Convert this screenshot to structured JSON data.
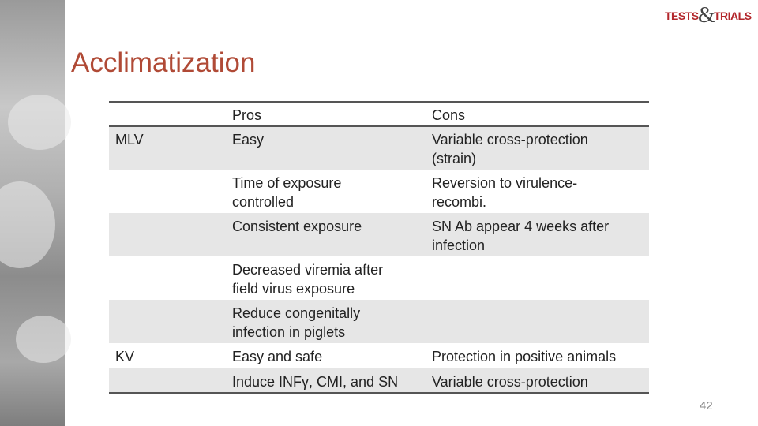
{
  "logo": {
    "left": "TESTS",
    "amp": "&",
    "right": "TRIALS"
  },
  "title": "Acclimatization",
  "table": {
    "header": [
      null,
      "Pros",
      "Cons"
    ],
    "rows": [
      [
        "MLV",
        "Easy",
        "Variable cross-protection\n(strain)"
      ],
      [
        null,
        "Time of exposure\ncontrolled",
        "Reversion to virulence-\nrecombi."
      ],
      [
        null,
        "Consistent exposure",
        "SN Ab appear 4 weeks after\ninfection"
      ],
      [
        null,
        "Decreased viremia after\nfield virus exposure",
        null
      ],
      [
        null,
        "Reduce congenitally\ninfection in piglets",
        null
      ],
      [
        "KV",
        "Easy and safe",
        "Protection in positive animals"
      ],
      [
        null,
        "Induce INFγ, CMI, and SN",
        "Variable cross-protection"
      ]
    ]
  },
  "page_number": "42"
}
